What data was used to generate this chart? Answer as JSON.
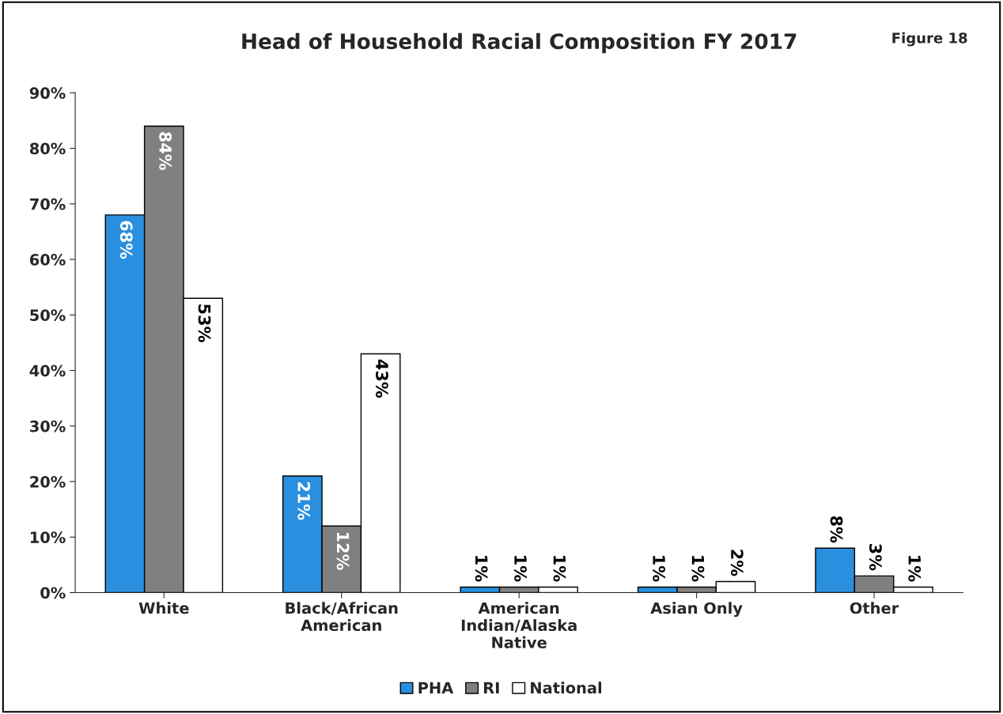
{
  "chart_data": {
    "type": "bar",
    "title": "Head of Household Racial Composition FY 2017",
    "annotations": [
      "Figure 18"
    ],
    "categories": [
      "White",
      "Black/African\nAmerican",
      "American\nIndian/Alaska\nNative",
      "Asian Only",
      "Other"
    ],
    "series": [
      {
        "name": "PHA",
        "color": "#2a8fdf",
        "values": [
          68,
          21,
          1,
          1,
          8
        ],
        "value_labels": [
          "68%",
          "21%",
          "1%",
          "1%",
          "8%"
        ]
      },
      {
        "name": "RI",
        "color": "#808080",
        "values": [
          84,
          12,
          1,
          1,
          3
        ],
        "value_labels": [
          "84%",
          "12%",
          "1%",
          "1%",
          "3%"
        ]
      },
      {
        "name": "National",
        "color": "#ffffff",
        "values": [
          53,
          43,
          1,
          2,
          1
        ],
        "value_labels": [
          "53%",
          "43%",
          "1%",
          "2%",
          "1%"
        ]
      }
    ],
    "ylim": [
      0,
      90
    ],
    "yticks": [
      {
        "value": 0,
        "label": "0%"
      },
      {
        "value": 10,
        "label": "10%"
      },
      {
        "value": 20,
        "label": "20%"
      },
      {
        "value": 30,
        "label": "30%"
      },
      {
        "value": 40,
        "label": "40%"
      },
      {
        "value": 50,
        "label": "50%"
      },
      {
        "value": 60,
        "label": "60%"
      },
      {
        "value": 70,
        "label": "70%"
      },
      {
        "value": 80,
        "label": "80%"
      },
      {
        "value": 90,
        "label": "90%"
      }
    ],
    "grid": false,
    "legend": "bottom"
  }
}
